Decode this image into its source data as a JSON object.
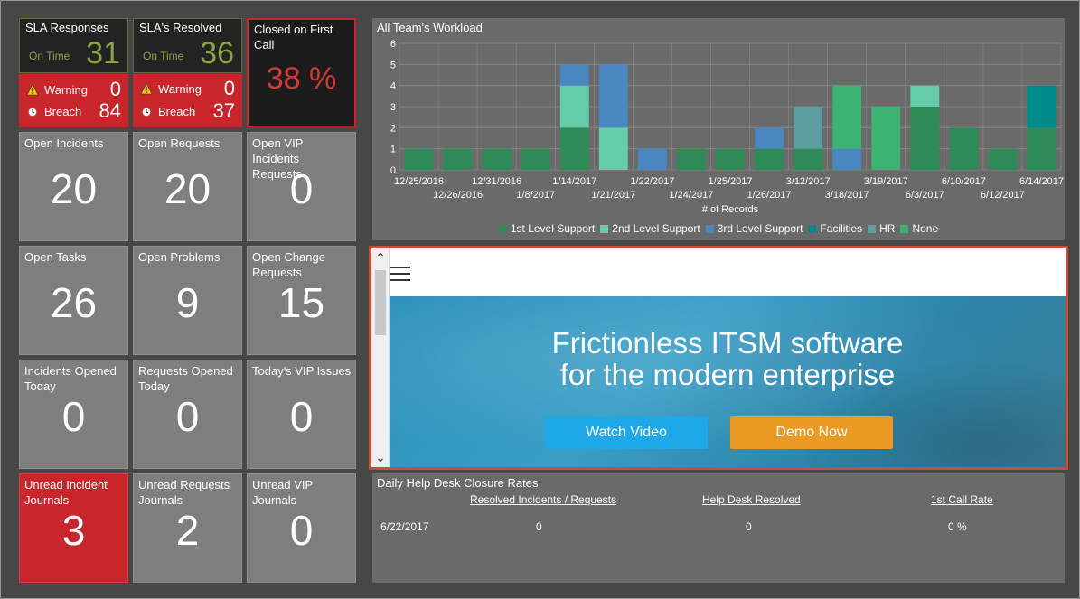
{
  "sla_responses": {
    "title": "SLA Responses",
    "on_time_label": "On Time",
    "on_time_value": "31",
    "warning_label": "Warning",
    "warning_value": "0",
    "breach_label": "Breach",
    "breach_value": "84"
  },
  "sla_resolved": {
    "title": "SLA's Resolved",
    "on_time_label": "On Time",
    "on_time_value": "36",
    "warning_label": "Warning",
    "warning_value": "0",
    "breach_label": "Breach",
    "breach_value": "37"
  },
  "first_call": {
    "title": "Closed on First Call",
    "value": "38 %"
  },
  "tiles": [
    {
      "title": "Open Incidents",
      "value": "20",
      "color": "gray"
    },
    {
      "title": "Open Requests",
      "value": "20",
      "color": "gray"
    },
    {
      "title": "Open VIP Incidents Requests",
      "value": "0",
      "color": "gray"
    },
    {
      "title": "Open Tasks",
      "value": "26",
      "color": "gray"
    },
    {
      "title": "Open Problems",
      "value": "9",
      "color": "gray"
    },
    {
      "title": "Open Change Requests",
      "value": "15",
      "color": "gray"
    },
    {
      "title": "Incidents Opened Today",
      "value": "0",
      "color": "gray"
    },
    {
      "title": "Requests Opened Today",
      "value": "0",
      "color": "gray"
    },
    {
      "title": "Today's VIP Issues",
      "value": "0",
      "color": "gray"
    },
    {
      "title": "Unread Incident Journals",
      "value": "3",
      "color": "red"
    },
    {
      "title": "Unread Requests Journals",
      "value": "2",
      "color": "gray"
    },
    {
      "title": "Unread VIP Journals",
      "value": "0",
      "color": "gray"
    }
  ],
  "workload": {
    "title": "All Team's Workload",
    "xlabel": "# of Records"
  },
  "chart_data": {
    "type": "bar",
    "stacked": true,
    "title": "All Team's Workload",
    "xlabel": "# of Records",
    "ylabel": "",
    "ylim": [
      0,
      6
    ],
    "yticks": [
      0,
      1,
      2,
      3,
      4,
      5,
      6
    ],
    "categories": [
      "12/25/2016",
      "12/26/2016",
      "12/31/2016",
      "1/8/2017",
      "1/14/2017",
      "1/21/2017",
      "1/22/2017",
      "1/24/2017",
      "1/25/2017",
      "1/26/2017",
      "3/12/2017",
      "3/18/2017",
      "3/19/2017",
      "6/3/2017",
      "6/10/2017",
      "6/12/2017",
      "6/14/2017"
    ],
    "series": [
      {
        "name": "1st Level Support",
        "color": "#2e8b57",
        "values": [
          1,
          1,
          1,
          1,
          2,
          0,
          0,
          1,
          1,
          1,
          1,
          0,
          0,
          3,
          2,
          1,
          2
        ]
      },
      {
        "name": "2nd Level Support",
        "color": "#66cdaa",
        "values": [
          0,
          0,
          0,
          0,
          2,
          2,
          0,
          0,
          0,
          0,
          0,
          0,
          0,
          1,
          0,
          0,
          0
        ]
      },
      {
        "name": "3rd Level Support",
        "color": "#4a86c0",
        "values": [
          0,
          0,
          0,
          0,
          1,
          3,
          1,
          0,
          0,
          1,
          0,
          1,
          0,
          0,
          0,
          0,
          0
        ]
      },
      {
        "name": "Facilities",
        "color": "#008b8b",
        "values": [
          0,
          0,
          0,
          0,
          0,
          0,
          0,
          0,
          0,
          0,
          0,
          0,
          0,
          0,
          0,
          0,
          2
        ]
      },
      {
        "name": "HR",
        "color": "#5f9ea0",
        "values": [
          0,
          0,
          0,
          0,
          0,
          0,
          0,
          0,
          0,
          0,
          2,
          0,
          0,
          0,
          0,
          0,
          0
        ]
      },
      {
        "name": "None",
        "color": "#3cb371",
        "values": [
          0,
          0,
          0,
          0,
          0,
          0,
          0,
          0,
          0,
          0,
          0,
          3,
          3,
          0,
          0,
          0,
          0
        ]
      }
    ],
    "legend": "bottom",
    "grid": true
  },
  "banner": {
    "headline_line1": "Frictionless ITSM software",
    "headline_line2": "for the modern enterprise",
    "watch_label": "Watch Video",
    "demo_label": "Demo Now",
    "scroll_up": "^",
    "scroll_down": "v"
  },
  "closure": {
    "title": "Daily Help Desk Closure Rates",
    "headers": [
      "Resolved Incidents / Requests",
      "Help Desk Resolved",
      "1st Call Rate"
    ],
    "row": {
      "date": "6/22/2017",
      "resolved": "0",
      "helpdesk": "0",
      "rate": "0 %"
    }
  }
}
